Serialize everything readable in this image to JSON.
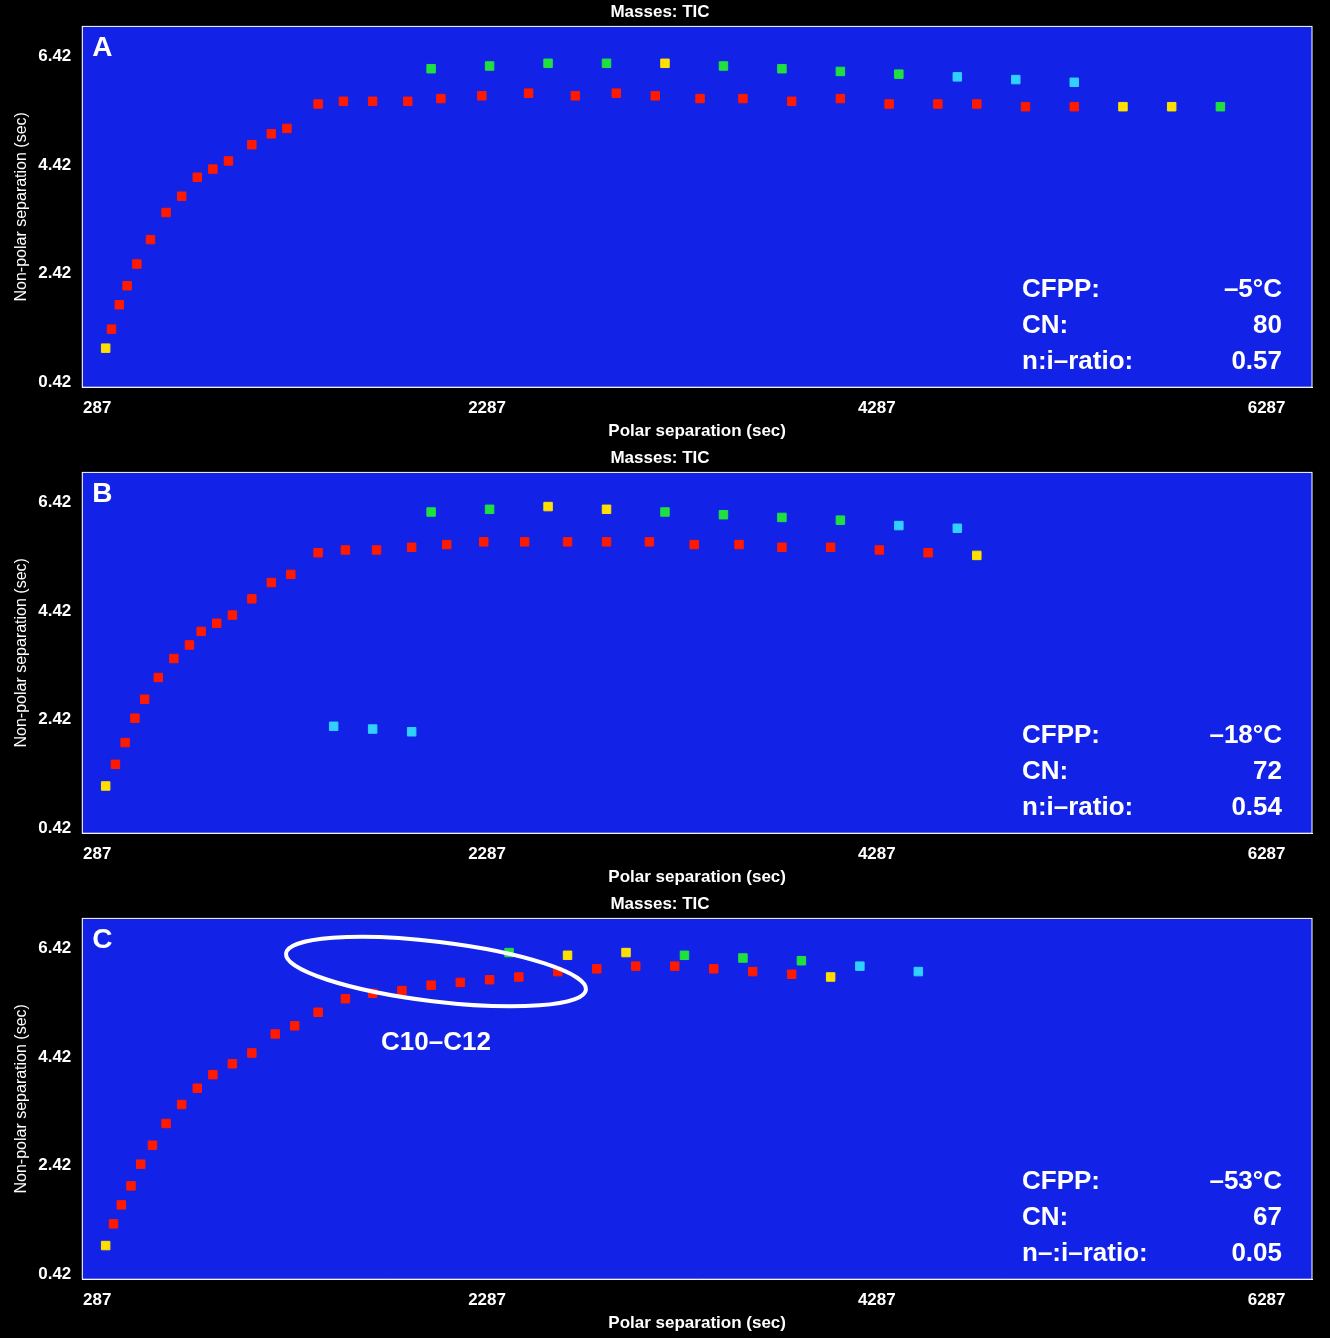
{
  "chart_data": [
    {
      "type": "scatter",
      "panel": "A",
      "title": "Masses: TIC",
      "x_label": "Polar separation (sec)",
      "y_label": "Non-polar separation (sec)",
      "xlim": [
        210,
        6520
      ],
      "ylim": [
        0.33,
        6.98
      ],
      "xticks": [
        287,
        2287,
        4287,
        6287
      ],
      "yticks": [
        0.42,
        2.42,
        4.42,
        6.42
      ],
      "x": [
        330,
        360,
        400,
        440,
        490,
        560,
        640,
        720,
        800,
        880,
        960,
        1080,
        1180,
        1260,
        1420,
        1550,
        1700,
        1880,
        2050,
        2260,
        2500,
        2740,
        2950,
        3150,
        3380,
        3600,
        3850,
        4100,
        4350,
        4600,
        4800,
        5050,
        5300,
        5550,
        5800,
        6050,
        2000,
        2300,
        2600,
        2900,
        3200,
        3500,
        3800,
        4100,
        4400,
        4700,
        5000,
        5300
      ],
      "y": [
        1.05,
        1.4,
        1.85,
        2.2,
        2.6,
        3.05,
        3.55,
        3.85,
        4.2,
        4.35,
        4.5,
        4.8,
        5.0,
        5.1,
        5.55,
        5.6,
        5.6,
        5.6,
        5.65,
        5.7,
        5.75,
        5.7,
        5.75,
        5.7,
        5.65,
        5.65,
        5.6,
        5.65,
        5.55,
        5.55,
        5.55,
        5.5,
        5.5,
        5.5,
        5.5,
        5.5,
        6.2,
        6.25,
        6.3,
        6.3,
        6.3,
        6.25,
        6.2,
        6.15,
        6.1,
        6.05,
        6.0,
        5.95
      ],
      "intensity": [
        70,
        80,
        80,
        85,
        90,
        95,
        95,
        100,
        100,
        95,
        95,
        100,
        100,
        100,
        100,
        95,
        95,
        100,
        95,
        100,
        95,
        100,
        95,
        95,
        95,
        95,
        95,
        90,
        90,
        90,
        85,
        85,
        80,
        75,
        60,
        40,
        50,
        55,
        55,
        55,
        60,
        55,
        50,
        45,
        40,
        35,
        30,
        25
      ],
      "annotations": [
        {
          "label": "CFPP:",
          "value": "–5°C"
        },
        {
          "label": "CN:",
          "value": "80"
        },
        {
          "label": "n:i–ratio:",
          "value": "0.57"
        }
      ]
    },
    {
      "type": "scatter",
      "panel": "B",
      "title": "Masses: TIC",
      "x_label": "Polar separation (sec)",
      "y_label": "Non-polar separation (sec)",
      "xlim": [
        210,
        6520
      ],
      "ylim": [
        0.33,
        6.98
      ],
      "xticks": [
        287,
        2287,
        4287,
        6287
      ],
      "yticks": [
        0.42,
        2.42,
        4.42,
        6.42
      ],
      "x": [
        330,
        380,
        430,
        480,
        530,
        600,
        680,
        760,
        820,
        900,
        980,
        1080,
        1180,
        1280,
        1420,
        1560,
        1720,
        1900,
        2080,
        2270,
        2480,
        2700,
        2900,
        3120,
        3350,
        3580,
        3800,
        4050,
        4300,
        4550,
        4800,
        2000,
        2300,
        2600,
        2900,
        3200,
        3500,
        3800,
        4100,
        4400,
        4700,
        1500,
        1700,
        1900
      ],
      "y": [
        1.2,
        1.6,
        2.0,
        2.45,
        2.8,
        3.2,
        3.55,
        3.8,
        4.05,
        4.2,
        4.35,
        4.65,
        4.95,
        5.1,
        5.5,
        5.55,
        5.55,
        5.6,
        5.65,
        5.7,
        5.7,
        5.7,
        5.7,
        5.7,
        5.65,
        5.65,
        5.6,
        5.6,
        5.55,
        5.5,
        5.45,
        6.25,
        6.3,
        6.35,
        6.3,
        6.25,
        6.2,
        6.15,
        6.1,
        6.0,
        5.95,
        2.3,
        2.25,
        2.2
      ],
      "intensity": [
        60,
        80,
        85,
        85,
        90,
        95,
        95,
        95,
        100,
        100,
        95,
        100,
        100,
        95,
        100,
        95,
        95,
        100,
        95,
        100,
        95,
        100,
        95,
        95,
        95,
        90,
        90,
        85,
        85,
        80,
        60,
        50,
        55,
        60,
        60,
        55,
        50,
        45,
        40,
        30,
        25,
        20,
        20,
        20
      ],
      "annotations": [
        {
          "label": "CFPP:",
          "value": "–18°C"
        },
        {
          "label": "CN:",
          "value": "72"
        },
        {
          "label": "n:i–ratio:",
          "value": "0.54"
        }
      ]
    },
    {
      "type": "scatter",
      "panel": "C",
      "title": "Masses: TIC",
      "x_label": "Polar separation (sec)",
      "y_label": "Non-polar separation (sec)",
      "xlim": [
        210,
        6520
      ],
      "ylim": [
        0.33,
        6.98
      ],
      "xticks": [
        287,
        2287,
        4287,
        6287
      ],
      "yticks": [
        0.42,
        2.42,
        4.42,
        6.42
      ],
      "x": [
        330,
        370,
        410,
        460,
        510,
        570,
        640,
        720,
        800,
        880,
        980,
        1080,
        1200,
        1300,
        1420,
        1560,
        1700,
        1850,
        2000,
        2150,
        2300,
        2450,
        2650,
        2850,
        3050,
        3250,
        3450,
        3650,
        3850,
        4050,
        2400,
        2700,
        3000,
        3300,
        3600,
        3900,
        4200,
        4500
      ],
      "y": [
        0.95,
        1.35,
        1.7,
        2.05,
        2.45,
        2.8,
        3.2,
        3.55,
        3.85,
        4.1,
        4.3,
        4.5,
        4.85,
        5.0,
        5.25,
        5.5,
        5.6,
        5.65,
        5.75,
        5.8,
        5.85,
        5.9,
        6.0,
        6.05,
        6.1,
        6.1,
        6.05,
        6.0,
        5.95,
        5.9,
        6.35,
        6.3,
        6.35,
        6.3,
        6.25,
        6.2,
        6.1,
        6.0
      ],
      "intensity": [
        70,
        80,
        85,
        85,
        90,
        90,
        95,
        95,
        95,
        100,
        100,
        95,
        100,
        100,
        95,
        100,
        95,
        100,
        100,
        95,
        100,
        95,
        100,
        95,
        100,
        100,
        100,
        95,
        90,
        60,
        55,
        60,
        60,
        55,
        50,
        45,
        35,
        25
      ],
      "region": {
        "label": "C10–C12",
        "xlim": [
          1250,
          2800
        ],
        "ylim": [
          5.45,
          6.55
        ]
      },
      "annotations": [
        {
          "label": "CFPP:",
          "value": "–53°C"
        },
        {
          "label": "CN:",
          "value": "67"
        },
        {
          "label": "n–:i–ratio:",
          "value": "0.05"
        }
      ]
    }
  ]
}
